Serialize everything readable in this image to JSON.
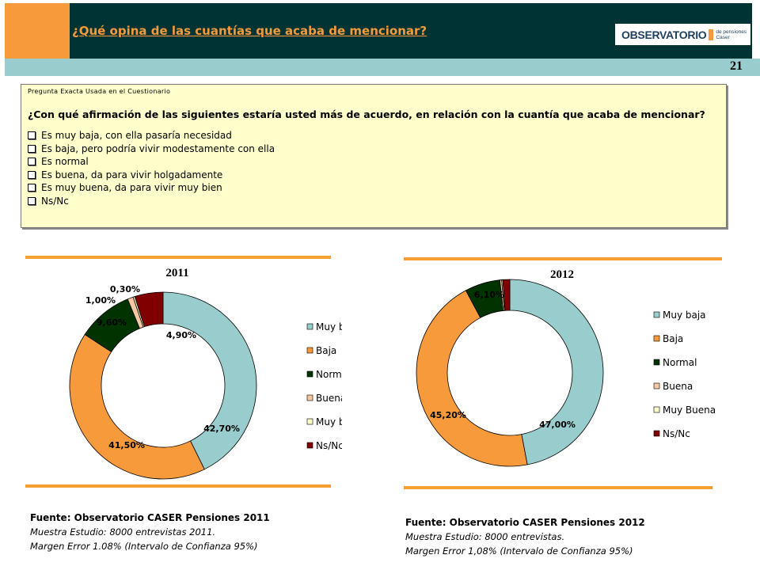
{
  "header": {
    "title": "¿Qué opina de las cuantías que acaba de mencionar?",
    "logo_main": "OBSERVATORIO",
    "logo_sub_1": "de pensiones",
    "logo_sub_2": "Caser",
    "page_number": "21"
  },
  "question": {
    "caption": "Pregunta Exacta Usada en el Cuestionario",
    "text": "¿Con qué afirmación de las siguientes estaría usted más de acuerdo, en relación con la cuantía que acaba de mencionar?",
    "options": [
      "Es muy baja, con ella pasaría necesidad",
      "Es baja, pero podría vivir modestamente con ella",
      "Es normal",
      "Es buena, da para vivir holgadamente",
      "Es muy buena, da para vivir muy bien",
      "Ns/Nc"
    ]
  },
  "chart_data": [
    {
      "type": "pie",
      "title": "2011",
      "categories": [
        "Muy baja",
        "Baja",
        "Normal",
        "Buena",
        "Muy buena",
        "Ns/Nc"
      ],
      "values": [
        42.7,
        41.5,
        9.6,
        1.0,
        0.3,
        4.9
      ],
      "labels": [
        "42,70%",
        "41,50%",
        "9,60%",
        "1,00%",
        "0,30%",
        "4,90%"
      ],
      "colors": [
        "#99CCCC",
        "#F79A3B",
        "#003300",
        "#F9C7A0",
        "#FFFFCC",
        "#800000"
      ],
      "legend_position": "right"
    },
    {
      "type": "pie",
      "title": "2012",
      "categories": [
        "Muy baja",
        "Baja",
        "Normal",
        "Buena",
        "Muy Buena",
        "Ns/Nc"
      ],
      "values": [
        47.0,
        45.2,
        6.1,
        0.3,
        0.2,
        1.2
      ],
      "labels": [
        "47,00%",
        "45,20%",
        "6,10%",
        "",
        "",
        ""
      ],
      "colors": [
        "#99CCCC",
        "#F79A3B",
        "#003300",
        "#F9C7A0",
        "#FFFFCC",
        "#800000"
      ],
      "legend_position": "right"
    }
  ],
  "sources": [
    {
      "title": "Fuente: Observatorio CASER Pensiones 2011",
      "line1": "Muestra Estudio: 8000 entrevistas 2011.",
      "line2": "Margen Error 1.08% (Intervalo de Confianza 95%)"
    },
    {
      "title": "Fuente: Observatorio CASER Pensiones 2012",
      "line1": "Muestra Estudio: 8000 entrevistas.",
      "line2": "Margen Error 1,08% (Intervalo de Confianza 95%)"
    }
  ]
}
